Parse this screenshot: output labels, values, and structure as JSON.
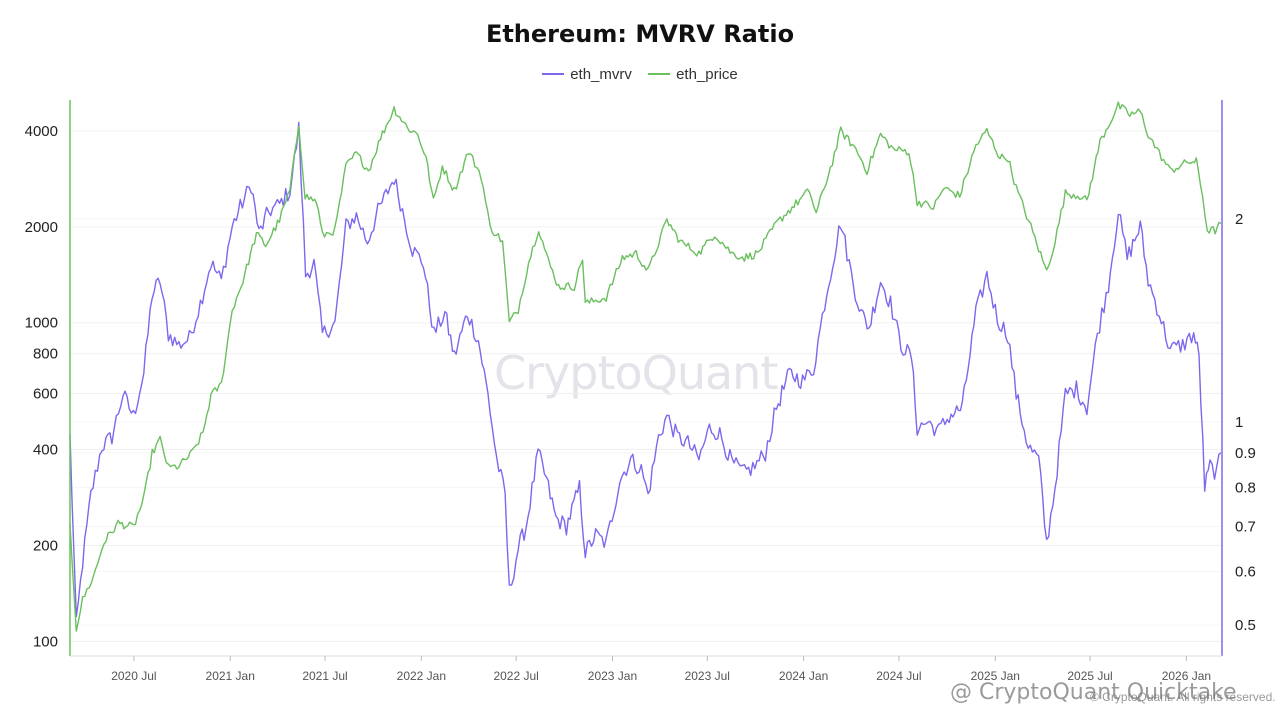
{
  "chart_data": {
    "type": "line",
    "title": "Ethereum: MVRV Ratio",
    "legend_position": "top-center",
    "grid": "horizontal",
    "series": [
      {
        "name": "eth_mvrv",
        "color": "#7b68ee",
        "axis": "right",
        "points": [
          [
            "2020-03-01",
            0.95
          ],
          [
            "2020-03-13",
            0.5
          ],
          [
            "2020-03-25",
            0.62
          ],
          [
            "2020-04-10",
            0.78
          ],
          [
            "2020-05-01",
            0.92
          ],
          [
            "2020-05-20",
            0.95
          ],
          [
            "2020-06-10",
            1.1
          ],
          [
            "2020-06-30",
            1.02
          ],
          [
            "2020-07-20",
            1.18
          ],
          [
            "2020-08-05",
            1.55
          ],
          [
            "2020-08-20",
            1.62
          ],
          [
            "2020-09-05",
            1.35
          ],
          [
            "2020-09-25",
            1.3
          ],
          [
            "2020-10-15",
            1.33
          ],
          [
            "2020-11-05",
            1.5
          ],
          [
            "2020-11-25",
            1.72
          ],
          [
            "2020-12-15",
            1.62
          ],
          [
            "2021-01-05",
            1.95
          ],
          [
            "2021-01-20",
            2.08
          ],
          [
            "2021-02-10",
            2.25
          ],
          [
            "2021-02-25",
            1.9
          ],
          [
            "2021-03-15",
            2.05
          ],
          [
            "2021-04-05",
            2.1
          ],
          [
            "2021-04-25",
            2.2
          ],
          [
            "2021-05-12",
            2.72
          ],
          [
            "2021-05-25",
            1.65
          ],
          [
            "2021-06-10",
            1.72
          ],
          [
            "2021-06-26",
            1.35
          ],
          [
            "2021-07-20",
            1.4
          ],
          [
            "2021-08-10",
            1.95
          ],
          [
            "2021-08-30",
            2.02
          ],
          [
            "2021-09-20",
            1.85
          ],
          [
            "2021-10-10",
            2.05
          ],
          [
            "2021-11-10",
            2.3
          ],
          [
            "2021-11-30",
            2.0
          ],
          [
            "2021-12-15",
            1.8
          ],
          [
            "2022-01-05",
            1.72
          ],
          [
            "2022-01-25",
            1.35
          ],
          [
            "2022-02-15",
            1.45
          ],
          [
            "2022-03-05",
            1.25
          ],
          [
            "2022-03-30",
            1.45
          ],
          [
            "2022-04-20",
            1.32
          ],
          [
            "2022-05-08",
            1.1
          ],
          [
            "2022-05-25",
            0.88
          ],
          [
            "2022-06-10",
            0.78
          ],
          [
            "2022-06-18",
            0.56
          ],
          [
            "2022-07-05",
            0.65
          ],
          [
            "2022-07-20",
            0.7
          ],
          [
            "2022-08-12",
            0.9
          ],
          [
            "2022-08-28",
            0.82
          ],
          [
            "2022-09-15",
            0.72
          ],
          [
            "2022-10-05",
            0.7
          ],
          [
            "2022-10-30",
            0.8
          ],
          [
            "2022-11-10",
            0.64
          ],
          [
            "2022-11-30",
            0.68
          ],
          [
            "2022-12-20",
            0.66
          ],
          [
            "2023-01-15",
            0.82
          ],
          [
            "2023-02-05",
            0.88
          ],
          [
            "2023-02-25",
            0.85
          ],
          [
            "2023-03-10",
            0.78
          ],
          [
            "2023-03-30",
            0.95
          ],
          [
            "2023-04-15",
            1.02
          ],
          [
            "2023-05-05",
            0.95
          ],
          [
            "2023-05-25",
            0.93
          ],
          [
            "2023-06-15",
            0.88
          ],
          [
            "2023-07-05",
            0.98
          ],
          [
            "2023-07-25",
            0.96
          ],
          [
            "2023-08-17",
            0.87
          ],
          [
            "2023-09-10",
            0.84
          ],
          [
            "2023-09-30",
            0.86
          ],
          [
            "2023-10-20",
            0.9
          ],
          [
            "2023-11-10",
            1.05
          ],
          [
            "2023-12-05",
            1.18
          ],
          [
            "2023-12-30",
            1.15
          ],
          [
            "2024-01-20",
            1.2
          ],
          [
            "2024-02-10",
            1.5
          ],
          [
            "2024-03-12",
            1.98
          ],
          [
            "2024-04-05",
            1.6
          ],
          [
            "2024-04-20",
            1.45
          ],
          [
            "2024-05-05",
            1.38
          ],
          [
            "2024-05-27",
            1.62
          ],
          [
            "2024-06-15",
            1.5
          ],
          [
            "2024-07-05",
            1.3
          ],
          [
            "2024-07-25",
            1.25
          ],
          [
            "2024-08-05",
            0.98
          ],
          [
            "2024-08-25",
            1.0
          ],
          [
            "2024-09-15",
            0.97
          ],
          [
            "2024-10-05",
            1.02
          ],
          [
            "2024-10-30",
            1.05
          ],
          [
            "2024-11-25",
            1.45
          ],
          [
            "2024-12-16",
            1.65
          ],
          [
            "2025-01-05",
            1.42
          ],
          [
            "2025-01-25",
            1.35
          ],
          [
            "2025-02-10",
            1.1
          ],
          [
            "2025-03-05",
            0.92
          ],
          [
            "2025-03-25",
            0.88
          ],
          [
            "2025-04-09",
            0.66
          ],
          [
            "2025-04-25",
            0.8
          ],
          [
            "2025-05-15",
            1.1
          ],
          [
            "2025-06-05",
            1.12
          ],
          [
            "2025-06-25",
            1.05
          ],
          [
            "2025-07-15",
            1.35
          ],
          [
            "2025-08-05",
            1.6
          ],
          [
            "2025-08-24",
            2.05
          ],
          [
            "2025-09-10",
            1.75
          ],
          [
            "2025-10-05",
            1.95
          ],
          [
            "2025-10-20",
            1.62
          ],
          [
            "2025-11-10",
            1.45
          ],
          [
            "2025-12-01",
            1.28
          ],
          [
            "2025-12-25",
            1.3
          ],
          [
            "2026-01-15",
            1.35
          ],
          [
            "2026-01-25",
            1.25
          ],
          [
            "2026-02-05",
            0.8
          ],
          [
            "2026-02-15",
            0.86
          ],
          [
            "2026-02-28",
            0.84
          ],
          [
            "2026-03-08",
            0.9
          ]
        ]
      },
      {
        "name": "eth_price",
        "color": "#6abf5e",
        "axis": "left",
        "points": [
          [
            "2020-03-01",
            230
          ],
          [
            "2020-03-13",
            110
          ],
          [
            "2020-03-25",
            135
          ],
          [
            "2020-04-15",
            160
          ],
          [
            "2020-05-05",
            205
          ],
          [
            "2020-06-01",
            235
          ],
          [
            "2020-06-30",
            228
          ],
          [
            "2020-07-20",
            280
          ],
          [
            "2020-08-05",
            390
          ],
          [
            "2020-08-20",
            430
          ],
          [
            "2020-09-05",
            350
          ],
          [
            "2020-09-25",
            355
          ],
          [
            "2020-10-20",
            390
          ],
          [
            "2020-11-10",
            450
          ],
          [
            "2020-11-25",
            590
          ],
          [
            "2020-12-15",
            640
          ],
          [
            "2021-01-05",
            1100
          ],
          [
            "2021-01-25",
            1350
          ],
          [
            "2021-02-20",
            1900
          ],
          [
            "2021-03-10",
            1750
          ],
          [
            "2021-04-05",
            2100
          ],
          [
            "2021-04-25",
            2600
          ],
          [
            "2021-05-12",
            4200
          ],
          [
            "2021-05-24",
            2500
          ],
          [
            "2021-06-15",
            2400
          ],
          [
            "2021-06-26",
            1880
          ],
          [
            "2021-07-20",
            1950
          ],
          [
            "2021-08-10",
            3100
          ],
          [
            "2021-08-30",
            3400
          ],
          [
            "2021-09-22",
            3000
          ],
          [
            "2021-10-15",
            3800
          ],
          [
            "2021-11-10",
            4700
          ],
          [
            "2021-12-05",
            4100
          ],
          [
            "2021-12-25",
            3900
          ],
          [
            "2022-01-10",
            3300
          ],
          [
            "2022-01-24",
            2400
          ],
          [
            "2022-02-10",
            3100
          ],
          [
            "2022-03-05",
            2600
          ],
          [
            "2022-04-01",
            3450
          ],
          [
            "2022-04-25",
            2900
          ],
          [
            "2022-05-12",
            2000
          ],
          [
            "2022-06-05",
            1800
          ],
          [
            "2022-06-18",
            1000
          ],
          [
            "2022-07-05",
            1100
          ],
          [
            "2022-07-25",
            1550
          ],
          [
            "2022-08-13",
            1980
          ],
          [
            "2022-09-01",
            1550
          ],
          [
            "2022-09-20",
            1300
          ],
          [
            "2022-10-20",
            1300
          ],
          [
            "2022-11-05",
            1600
          ],
          [
            "2022-11-10",
            1150
          ],
          [
            "2022-12-20",
            1200
          ],
          [
            "2023-01-20",
            1600
          ],
          [
            "2023-02-15",
            1650
          ],
          [
            "2023-03-10",
            1450
          ],
          [
            "2023-04-15",
            2100
          ],
          [
            "2023-05-10",
            1800
          ],
          [
            "2023-06-15",
            1650
          ],
          [
            "2023-07-15",
            1900
          ],
          [
            "2023-08-17",
            1650
          ],
          [
            "2023-09-10",
            1600
          ],
          [
            "2023-10-05",
            1650
          ],
          [
            "2023-11-10",
            2050
          ],
          [
            "2023-12-10",
            2300
          ],
          [
            "2024-01-12",
            2600
          ],
          [
            "2024-01-25",
            2200
          ],
          [
            "2024-02-25",
            3200
          ],
          [
            "2024-03-12",
            4000
          ],
          [
            "2024-04-10",
            3500
          ],
          [
            "2024-05-01",
            3000
          ],
          [
            "2024-05-27",
            3900
          ],
          [
            "2024-06-20",
            3500
          ],
          [
            "2024-07-20",
            3450
          ],
          [
            "2024-08-05",
            2400
          ],
          [
            "2024-09-05",
            2300
          ],
          [
            "2024-09-25",
            2650
          ],
          [
            "2024-10-25",
            2500
          ],
          [
            "2024-11-25",
            3600
          ],
          [
            "2024-12-16",
            4000
          ],
          [
            "2025-01-10",
            3300
          ],
          [
            "2025-01-25",
            3300
          ],
          [
            "2025-02-10",
            2650
          ],
          [
            "2025-03-10",
            2000
          ],
          [
            "2025-04-09",
            1450
          ],
          [
            "2025-04-25",
            1800
          ],
          [
            "2025-05-15",
            2550
          ],
          [
            "2025-06-15",
            2500
          ],
          [
            "2025-06-25",
            2400
          ],
          [
            "2025-07-20",
            3700
          ],
          [
            "2025-08-24",
            4800
          ],
          [
            "2025-09-15",
            4500
          ],
          [
            "2025-10-05",
            4600
          ],
          [
            "2025-10-20",
            3900
          ],
          [
            "2025-11-10",
            3400
          ],
          [
            "2025-12-01",
            3000
          ],
          [
            "2026-01-05",
            3200
          ],
          [
            "2026-01-20",
            3200
          ],
          [
            "2026-02-01",
            2500
          ],
          [
            "2026-02-10",
            1950
          ],
          [
            "2026-02-25",
            1950
          ],
          [
            "2026-03-08",
            2050
          ]
        ]
      }
    ],
    "x_axis": {
      "type": "date",
      "range": [
        "2020-03-01",
        "2026-03-10"
      ],
      "ticks": [
        {
          "label": "2020 Jul",
          "date": "2020-07-01"
        },
        {
          "label": "2021 Jan",
          "date": "2021-01-01"
        },
        {
          "label": "2021 Jul",
          "date": "2021-07-01"
        },
        {
          "label": "2022 Jan",
          "date": "2022-01-01"
        },
        {
          "label": "2022 Jul",
          "date": "2022-07-01"
        },
        {
          "label": "2023 Jan",
          "date": "2023-01-01"
        },
        {
          "label": "2023 Jul",
          "date": "2023-07-01"
        },
        {
          "label": "2024 Jan",
          "date": "2024-01-01"
        },
        {
          "label": "2024 Jul",
          "date": "2024-07-01"
        },
        {
          "label": "2025 Jan",
          "date": "2025-01-01"
        },
        {
          "label": "2025 Jul",
          "date": "2025-07-01"
        },
        {
          "label": "2026 Jan",
          "date": "2026-01-01"
        }
      ]
    },
    "y_left": {
      "scale": "log",
      "range": [
        90,
        5000
      ],
      "ticks": [
        {
          "label": "100",
          "value": 100
        },
        {
          "label": "200",
          "value": 200
        },
        {
          "label": "400",
          "value": 400
        },
        {
          "label": "600",
          "value": 600
        },
        {
          "label": "800",
          "value": 800
        },
        {
          "label": "1000",
          "value": 1000
        },
        {
          "label": "2000",
          "value": 2000
        },
        {
          "label": "4000",
          "value": 4000
        }
      ]
    },
    "y_right": {
      "scale": "log",
      "range": [
        0.45,
        3.0
      ],
      "ticks": [
        {
          "label": "0.5",
          "value": 0.5
        },
        {
          "label": "0.6",
          "value": 0.6
        },
        {
          "label": "0.7",
          "value": 0.7
        },
        {
          "label": "0.8",
          "value": 0.8
        },
        {
          "label": "0.9",
          "value": 0.9
        },
        {
          "label": "1",
          "value": 1.0
        },
        {
          "label": "2",
          "value": 2.0
        }
      ]
    }
  },
  "watermark": "CryptoQuant",
  "copyright": "© CryptoQuant. All rights reserved.",
  "attribution": "@ CryptoQuant Quicktake"
}
